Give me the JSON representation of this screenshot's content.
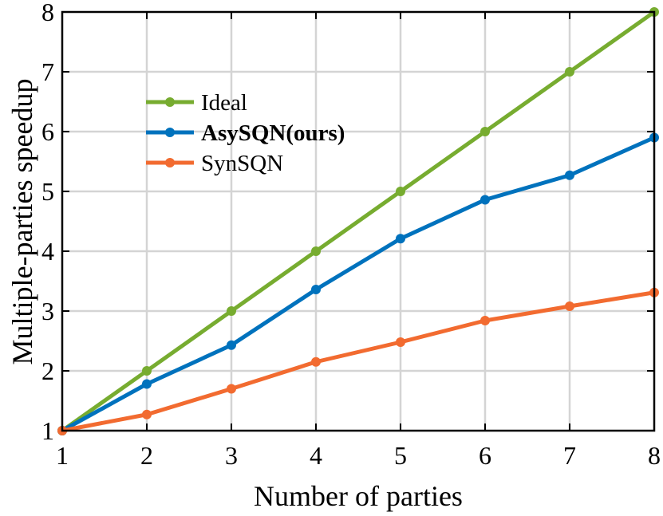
{
  "chart_data": {
    "type": "line",
    "xlabel": "Number of parties",
    "ylabel": "Multiple-parties speedup",
    "x": [
      1,
      2,
      3,
      4,
      5,
      6,
      7,
      8
    ],
    "xlim": [
      1,
      8
    ],
    "ylim": [
      1,
      8
    ],
    "xticks": [
      "1",
      "2",
      "3",
      "4",
      "5",
      "6",
      "7",
      "8"
    ],
    "yticks": [
      "1",
      "2",
      "3",
      "4",
      "5",
      "6",
      "7",
      "8"
    ],
    "grid": true,
    "legend_position": "upper-left",
    "series": [
      {
        "name": "Ideal",
        "color": "#77AC30",
        "bold": false,
        "values": [
          1,
          2,
          3,
          4,
          5,
          6,
          7,
          8
        ]
      },
      {
        "name": "AsySQN(ours)",
        "color": "#0072BD",
        "bold": true,
        "values": [
          1,
          1.78,
          2.43,
          3.36,
          4.21,
          4.86,
          5.27,
          5.9
        ]
      },
      {
        "name": "SynSQN",
        "color": "#F26B30",
        "bold": false,
        "values": [
          1,
          1.27,
          1.7,
          2.15,
          2.48,
          2.84,
          3.08,
          3.31
        ]
      }
    ]
  }
}
